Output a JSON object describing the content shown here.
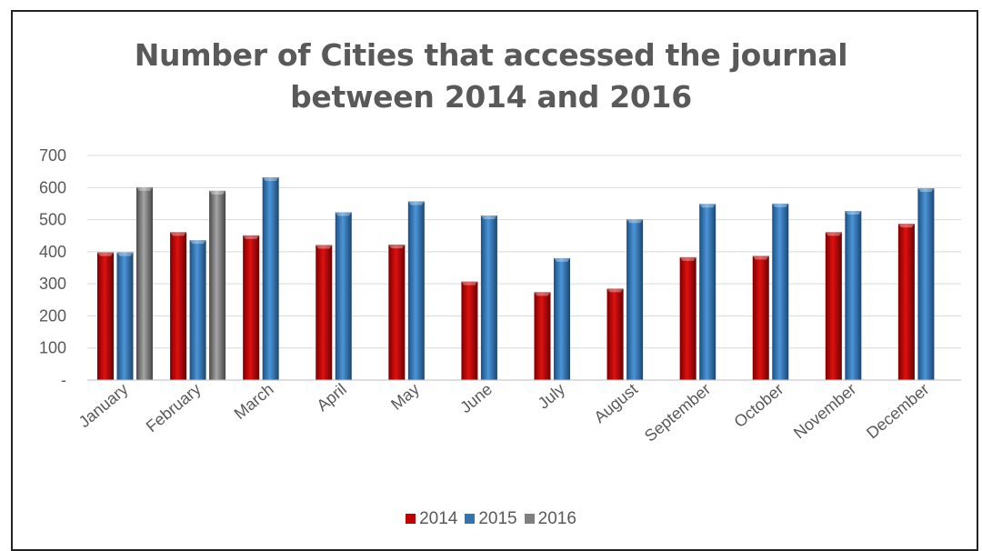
{
  "chart_data": {
    "type": "bar",
    "title_lines": [
      "Number of Cities that accessed the journal",
      "between 2014 and 2016"
    ],
    "categories": [
      "January",
      "February",
      "March",
      "April",
      "May",
      "June",
      "July",
      "August",
      "September",
      "October",
      "November",
      "December"
    ],
    "series": [
      {
        "name": "2014",
        "color": "#c00000",
        "values": [
          398,
          461,
          451,
          421,
          422,
          307,
          274,
          285,
          383,
          387,
          461,
          487
        ]
      },
      {
        "name": "2015",
        "color": "#2e75b6",
        "values": [
          398,
          436,
          632,
          523,
          557,
          513,
          380,
          501,
          549,
          550,
          527,
          598
        ]
      },
      {
        "name": "2016",
        "color": "#7f7f7f",
        "values": [
          601,
          590,
          null,
          null,
          null,
          null,
          null,
          null,
          null,
          null,
          null,
          null
        ]
      }
    ],
    "yticks": [
      "-",
      "100",
      "200",
      "300",
      "400",
      "500",
      "600",
      "700"
    ],
    "ylim": [
      0,
      700
    ],
    "grid": true,
    "legend_position": "bottom"
  }
}
